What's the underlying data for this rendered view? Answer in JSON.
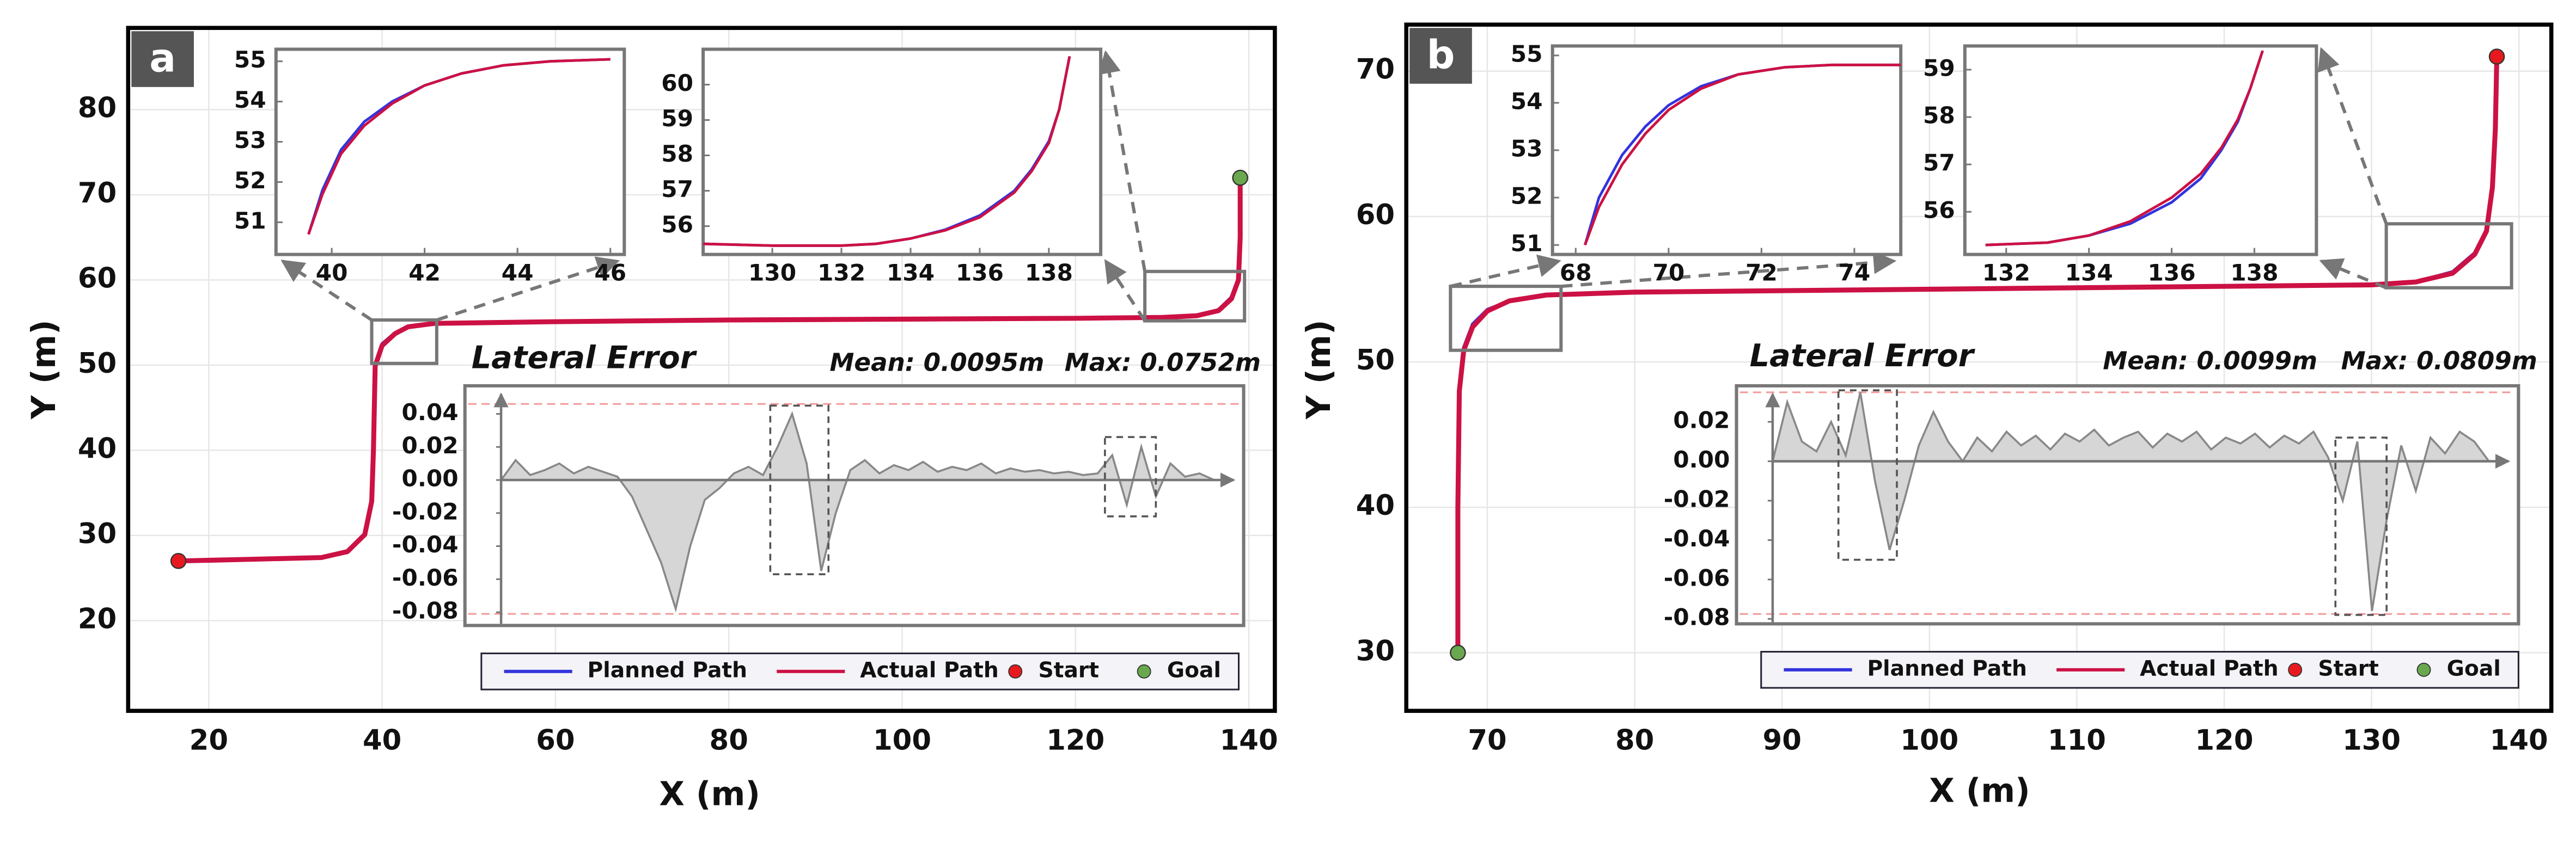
{
  "chart_data": [
    {
      "type": "line",
      "panel_label": "a",
      "x_label": "X (m)",
      "y_label": "Y (m)",
      "grid": true,
      "xlim": [
        10.7,
        143
      ],
      "ylim": [
        9.4,
        89.6
      ],
      "xticks": [
        20,
        40,
        60,
        80,
        100,
        120,
        140
      ],
      "yticks": [
        20,
        30,
        40,
        50,
        60,
        70,
        80
      ],
      "x": [
        16.5,
        25,
        33,
        36,
        38,
        38.8,
        39,
        39.2,
        40,
        41.5,
        43,
        46,
        60,
        80,
        100,
        120,
        130,
        134,
        136.5,
        138,
        138.8,
        139,
        139
      ],
      "series": [
        {
          "name": "Planned Path",
          "color": "#3333dd",
          "values": [
            27,
            27.2,
            27.4,
            28,
            30,
            34,
            40,
            50,
            52.5,
            53.8,
            54.5,
            54.9,
            55.1,
            55.3,
            55.4,
            55.5,
            55.6,
            55.8,
            56.5,
            58,
            60,
            65,
            72
          ]
        },
        {
          "name": "Actual Path",
          "color": "#cc1144",
          "values": [
            27,
            27.2,
            27.4,
            28.1,
            30.1,
            34,
            40,
            49.9,
            52.3,
            53.7,
            54.5,
            54.9,
            55.1,
            55.3,
            55.4,
            55.5,
            55.6,
            55.8,
            56.4,
            57.8,
            60,
            65,
            72
          ]
        }
      ],
      "markers": [
        {
          "name": "Start",
          "color": "#e8191e",
          "x": 16.5,
          "y": 27
        },
        {
          "name": "Goal",
          "color": "#6aa84f",
          "x": 139,
          "y": 72
        }
      ],
      "insets": [
        {
          "xlim": [
            38.8,
            46.3
          ],
          "ylim": [
            50.2,
            55.3
          ],
          "xticks": [
            40,
            42,
            44,
            46
          ],
          "yticks": [
            51,
            52,
            53,
            54,
            55
          ],
          "x": [
            39.5,
            39.8,
            40.2,
            40.7,
            41.3,
            42,
            42.8,
            43.7,
            44.7,
            46
          ],
          "series": [
            {
              "values": [
                50.7,
                51.8,
                52.8,
                53.5,
                54.0,
                54.4,
                54.7,
                54.9,
                55.0,
                55.05
              ]
            },
            {
              "values": [
                50.7,
                51.7,
                52.7,
                53.4,
                53.95,
                54.4,
                54.7,
                54.9,
                55.0,
                55.05
              ]
            }
          ]
        },
        {
          "xlim": [
            128,
            139.5
          ],
          "ylim": [
            55.2,
            61
          ],
          "xticks": [
            130,
            132,
            134,
            136,
            138
          ],
          "yticks": [
            56,
            57,
            58,
            59,
            60
          ],
          "x": [
            128,
            130,
            132,
            133,
            134,
            135,
            136,
            137,
            137.5,
            138,
            138.3,
            138.6
          ],
          "series": [
            {
              "values": [
                55.5,
                55.45,
                55.45,
                55.5,
                55.65,
                55.9,
                56.3,
                57.0,
                57.6,
                58.4,
                59.3,
                60.8
              ]
            },
            {
              "values": [
                55.5,
                55.45,
                55.45,
                55.5,
                55.65,
                55.88,
                56.25,
                56.95,
                57.55,
                58.35,
                59.3,
                60.8
              ]
            }
          ]
        }
      ],
      "lateral_error": {
        "title": "Lateral Error",
        "mean": "Mean: 0.0095m",
        "max": "Max: 0.0752m",
        "color": "#888888",
        "fill": "#d6d6d6",
        "limit_color": "#f29a9a",
        "ylim": [
          -0.088,
          0.057
        ],
        "yticks": [
          0.04,
          0.02,
          {
            "value": 0,
            "label": "0.00"
          },
          -0.02,
          -0.04,
          -0.06,
          -0.08
        ],
        "limit_lines": [
          0.046,
          -0.081
        ],
        "values": [
          0,
          0.012,
          0.003,
          0.006,
          0.01,
          0.004,
          0.008,
          0.005,
          0.002,
          -0.01,
          -0.03,
          -0.05,
          -0.078,
          -0.04,
          -0.012,
          -0.005,
          0.004,
          0.008,
          0.003,
          0.02,
          0.04,
          0.01,
          -0.055,
          -0.02,
          0.006,
          0.012,
          0.004,
          0.009,
          0.006,
          0.011,
          0.005,
          0.008,
          0.006,
          0.01,
          0.004,
          0.007,
          0.005,
          0.006,
          0.004,
          0.005,
          0.003,
          0.004,
          0.015,
          -0.015,
          0.02,
          -0.01,
          0.01,
          0.002,
          0.004,
          0
        ],
        "highlight_boxes": [
          {
            "x": [
              18.5,
              22.5
            ],
            "y": [
              -0.057,
              0.045
            ]
          },
          {
            "x": [
              41.5,
              45
            ],
            "y": [
              -0.022,
              0.026
            ]
          }
        ]
      }
    },
    {
      "type": "line",
      "panel_label": "b",
      "x_label": "X (m)",
      "y_label": "Y (m)",
      "grid": true,
      "xlim": [
        64.5,
        142.2
      ],
      "ylim": [
        26,
        73.2
      ],
      "xticks": [
        70,
        80,
        90,
        100,
        110,
        120,
        130,
        140
      ],
      "yticks": [
        30,
        40,
        50,
        60,
        70
      ],
      "x": [
        68,
        68,
        68.1,
        68.4,
        69,
        70,
        71.5,
        74,
        80,
        100,
        120,
        130,
        133,
        135.5,
        137,
        137.8,
        138.2,
        138.4,
        138.5
      ],
      "series": [
        {
          "name": "Planned Path",
          "color": "#3333dd",
          "values": [
            30,
            40,
            48,
            51,
            52.6,
            53.6,
            54.2,
            54.6,
            54.8,
            55,
            55.2,
            55.3,
            55.5,
            56.2,
            57.5,
            59,
            62,
            66,
            71
          ]
        },
        {
          "name": "Actual Path",
          "color": "#cc1144",
          "values": [
            30,
            40,
            48,
            50.8,
            52.4,
            53.5,
            54.2,
            54.6,
            54.8,
            55,
            55.2,
            55.3,
            55.5,
            56.1,
            57.4,
            59,
            62,
            66,
            71
          ]
        }
      ],
      "markers": [
        {
          "name": "Start",
          "color": "#e8191e",
          "x": 138.5,
          "y": 71
        },
        {
          "name": "Goal",
          "color": "#6aa84f",
          "x": 68,
          "y": 30
        }
      ],
      "insets": [
        {
          "xlim": [
            67.5,
            75
          ],
          "ylim": [
            50.8,
            55.2
          ],
          "xticks": [
            68,
            70,
            72,
            74
          ],
          "yticks": [
            51,
            52,
            53,
            54,
            55
          ],
          "x": [
            68.2,
            68.5,
            69,
            69.5,
            70,
            70.7,
            71.5,
            72.5,
            73.5,
            75
          ],
          "series": [
            {
              "values": [
                51,
                52.0,
                52.9,
                53.5,
                53.95,
                54.35,
                54.6,
                54.75,
                54.8,
                54.8
              ]
            },
            {
              "values": [
                51,
                51.8,
                52.7,
                53.35,
                53.85,
                54.3,
                54.6,
                54.75,
                54.8,
                54.8
              ]
            }
          ]
        },
        {
          "xlim": [
            131,
            139.5
          ],
          "ylim": [
            55.1,
            59.5
          ],
          "xticks": [
            132,
            134,
            136,
            138
          ],
          "yticks": [
            56,
            57,
            58,
            59
          ],
          "x": [
            131.5,
            133,
            134,
            135,
            136,
            136.7,
            137.2,
            137.6,
            137.9,
            138.2
          ],
          "series": [
            {
              "values": [
                55.3,
                55.35,
                55.5,
                55.75,
                56.2,
                56.7,
                57.3,
                57.9,
                58.6,
                59.4
              ]
            },
            {
              "values": [
                55.3,
                55.35,
                55.5,
                55.8,
                56.3,
                56.8,
                57.35,
                57.95,
                58.6,
                59.4
              ]
            }
          ]
        }
      ],
      "lateral_error": {
        "title": "Lateral Error",
        "mean": "Mean: 0.0099m",
        "max": "Max: 0.0809m",
        "color": "#888888",
        "fill": "#d6d6d6",
        "limit_color": "#f29a9a",
        "ylim": [
          -0.0825,
          0.0383
        ],
        "yticks": [
          0.02,
          {
            "value": 0,
            "label": "0.00"
          },
          -0.02,
          -0.04,
          -0.06,
          -0.08
        ],
        "limit_lines": [
          0.035,
          -0.0775
        ],
        "values": [
          0,
          0.03,
          0.01,
          0.005,
          0.02,
          0.003,
          0.035,
          -0.01,
          -0.045,
          -0.02,
          0.008,
          0.025,
          0.01,
          0.0,
          0.012,
          0.005,
          0.015,
          0.008,
          0.013,
          0.006,
          0.014,
          0.01,
          0.016,
          0.008,
          0.012,
          0.015,
          0.007,
          0.014,
          0.01,
          0.015,
          0.006,
          0.012,
          0.009,
          0.014,
          0.007,
          0.013,
          0.009,
          0.015,
          0.002,
          -0.02,
          0.01,
          -0.076,
          -0.03,
          0.008,
          -0.015,
          0.012,
          0.004,
          0.015,
          0.01,
          0
        ],
        "highlight_boxes": [
          {
            "x": [
              4.5,
              8.5
            ],
            "y": [
              -0.05,
              0.036
            ]
          },
          {
            "x": [
              38.5,
              42
            ],
            "y": [
              -0.078,
              0.012
            ]
          }
        ]
      }
    }
  ]
}
